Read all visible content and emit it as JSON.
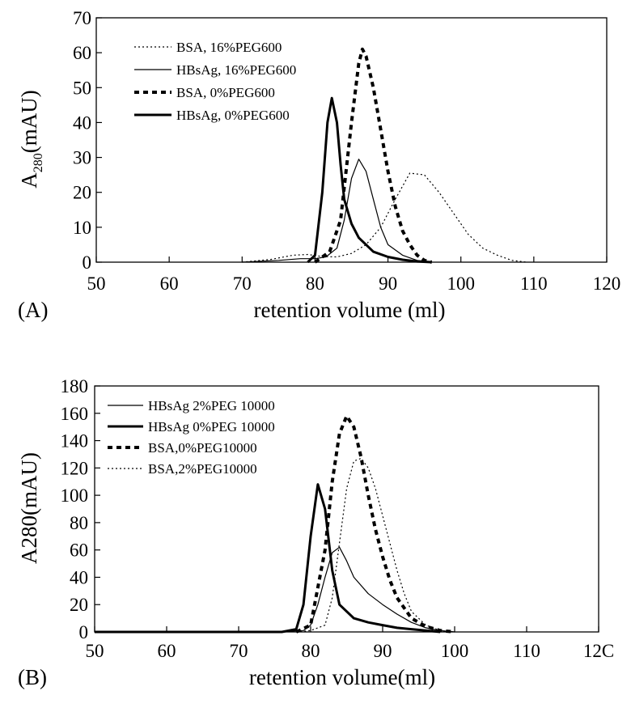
{
  "chart_data": [
    {
      "type": "line",
      "panel_label": "(A)",
      "xlabel": "retention volume (ml)",
      "ylabel_main": "A",
      "ylabel_sub": "280",
      "ylabel_tail": "(mAU)",
      "xlim": [
        50,
        120
      ],
      "ylim": [
        0,
        70
      ],
      "xticks": [
        "50",
        "60",
        "70",
        "80",
        "90",
        "100",
        "110",
        "120"
      ],
      "yticks": [
        "0",
        "10",
        "20",
        "30",
        "40",
        "50",
        "60",
        "70"
      ],
      "grid": false,
      "legend_position": "top-left",
      "series": [
        {
          "name": "BSA, 16%PEG600",
          "style": "dotted",
          "x": [
            70,
            74,
            77,
            79,
            81,
            83,
            85,
            87,
            89,
            91,
            93,
            95,
            97,
            99,
            101,
            103,
            105,
            107,
            109
          ],
          "y": [
            0,
            0.8,
            2.0,
            2.2,
            1.6,
            1.5,
            2.5,
            5,
            10,
            18,
            25.5,
            25,
            20,
            14,
            8,
            4,
            2,
            0.5,
            0
          ]
        },
        {
          "name": "HBsAg, 16%PEG600",
          "style": "thin",
          "x": [
            70,
            75,
            78,
            80,
            81.5,
            83,
            84,
            85,
            86,
            87,
            88,
            89,
            90,
            92,
            94,
            96
          ],
          "y": [
            0,
            0.5,
            1.0,
            1.0,
            1.5,
            4,
            12,
            24,
            29.5,
            26,
            18,
            10,
            5,
            2,
            0.5,
            0
          ]
        },
        {
          "name": "BSA, 0%PEG600",
          "style": "dashed-thick",
          "x": [
            80,
            82,
            83.5,
            85,
            86,
            86.5,
            87,
            88,
            89,
            90,
            91,
            92,
            93,
            94,
            95,
            96
          ],
          "y": [
            0,
            3,
            12,
            40,
            57,
            61,
            59,
            50,
            38,
            26,
            16,
            9,
            5,
            2,
            0.5,
            0
          ]
        },
        {
          "name": "HBsAg, 0%PEG600",
          "style": "thick",
          "x": [
            79,
            80,
            81,
            81.7,
            82.3,
            83,
            83.5,
            84,
            85,
            86,
            87,
            88,
            90,
            92,
            94,
            96
          ],
          "y": [
            0,
            2,
            20,
            40,
            47,
            40,
            28,
            18,
            11,
            7,
            5,
            3,
            1.5,
            0.7,
            0.2,
            0
          ]
        }
      ]
    },
    {
      "type": "line",
      "panel_label": "(B)",
      "xlabel": "retention volume(ml)",
      "ylabel_main": "A280(mAU)",
      "xlim": [
        50,
        120
      ],
      "ylim": [
        0,
        180
      ],
      "xticks": [
        "50",
        "60",
        "70",
        "80",
        "90",
        "100",
        "110",
        "12C"
      ],
      "yticks": [
        "0",
        "20",
        "40",
        "60",
        "80",
        "100",
        "120",
        "140",
        "160",
        "180"
      ],
      "grid": false,
      "legend_position": "top-left",
      "series": [
        {
          "name": "HBsAg 2%PEG 10000",
          "style": "thin",
          "x": [
            50,
            75,
            79,
            80,
            81,
            82,
            83,
            84,
            85,
            86,
            88,
            90,
            92,
            94,
            96,
            98,
            100
          ],
          "y": [
            0,
            0,
            1,
            5,
            20,
            40,
            58,
            62,
            52,
            40,
            28,
            20,
            13,
            7,
            3,
            1,
            0
          ]
        },
        {
          "name": "HBsAg 0%PEG 10000",
          "style": "thick",
          "x": [
            50,
            76,
            78,
            79,
            80,
            81,
            82,
            83,
            84,
            86,
            88,
            90,
            92,
            94,
            96,
            98
          ],
          "y": [
            0,
            0,
            2,
            20,
            70,
            108,
            90,
            45,
            20,
            10,
            7,
            5,
            3,
            2,
            1,
            0
          ]
        },
        {
          "name": "BSA,0%PEG10000",
          "style": "dashed-thick",
          "x": [
            78,
            80,
            82,
            83,
            84,
            85,
            86,
            87,
            88,
            89,
            90,
            91,
            92,
            94,
            96,
            98,
            100
          ],
          "y": [
            0,
            5,
            60,
            110,
            145,
            158,
            150,
            128,
            100,
            75,
            55,
            38,
            25,
            10,
            4,
            1,
            0
          ]
        },
        {
          "name": "BSA,2%PEG10000",
          "style": "dotted",
          "x": [
            78,
            80,
            82,
            83,
            84,
            85,
            86,
            87,
            88,
            89,
            90,
            91,
            92,
            93,
            94,
            96,
            98,
            100
          ],
          "y": [
            0,
            1,
            5,
            25,
            65,
            105,
            125,
            127,
            120,
            105,
            85,
            65,
            45,
            28,
            15,
            5,
            1,
            0
          ]
        }
      ]
    }
  ]
}
